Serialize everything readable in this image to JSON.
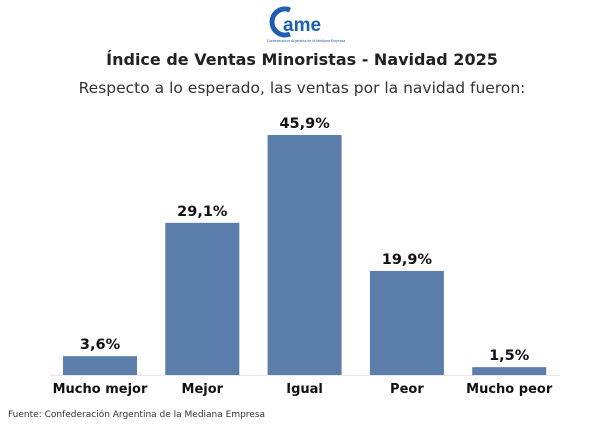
{
  "logo": {
    "text": "came",
    "tagline": "Confederación Argentina de la Mediana Empresa",
    "color": "#1d5fae"
  },
  "chart_data": {
    "type": "bar",
    "title": "Índice de Ventas Minoristas - Navidad 2025",
    "subtitle": "Respecto a lo esperado, las ventas por la navidad fueron:",
    "categories": [
      "Mucho mejor",
      "Mejor",
      "Igual",
      "Peor",
      "Mucho peor"
    ],
    "values": [
      3.6,
      29.1,
      45.9,
      19.9,
      1.5
    ],
    "data_labels": [
      "3,6%",
      "29,1%",
      "45,9%",
      "19,9%",
      "1,5%"
    ],
    "xlabel": "",
    "ylabel": "",
    "ylim": [
      0,
      45.9
    ],
    "grid": false,
    "bar_color": "#5a7daa"
  },
  "source": "Fuente: Confederación Argentina de la Mediana Empresa"
}
